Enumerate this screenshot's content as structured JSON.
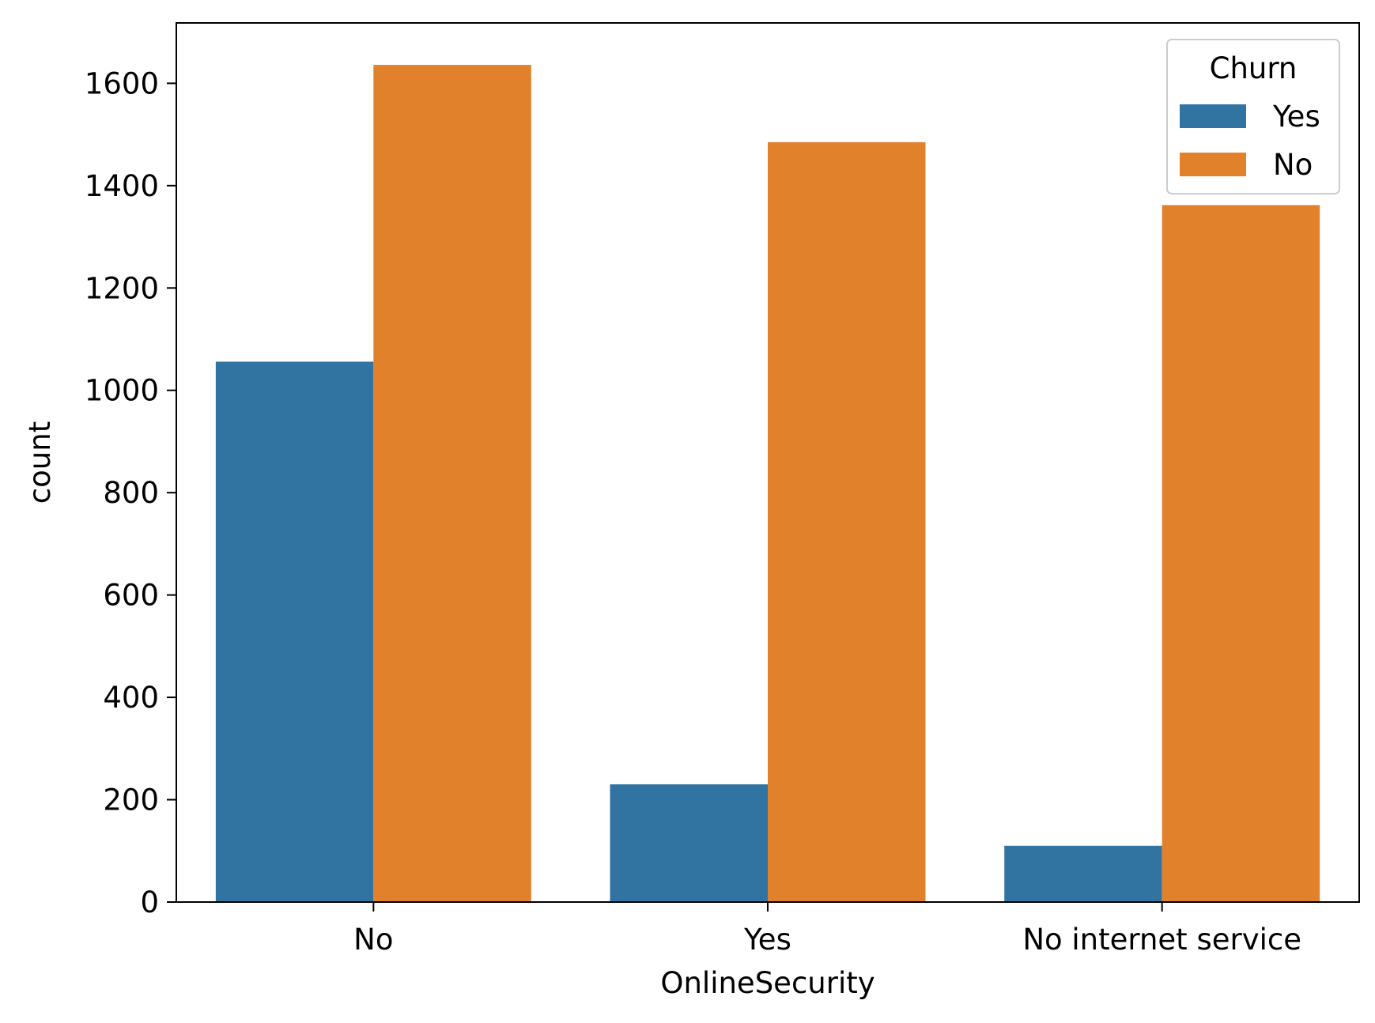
{
  "chart_data": {
    "type": "bar",
    "title": "",
    "xlabel": "OnlineSecurity",
    "ylabel": "count",
    "categories": [
      "No",
      "Yes",
      "No internet service"
    ],
    "series": [
      {
        "name": "Yes",
        "color": "#3274a1",
        "values": [
          1056,
          230,
          110
        ]
      },
      {
        "name": "No",
        "color": "#e1812c",
        "values": [
          1636,
          1485,
          1362
        ]
      }
    ],
    "ylim": [
      0,
      1718
    ],
    "yticks": [
      0,
      200,
      400,
      600,
      800,
      1000,
      1200,
      1400,
      1600
    ],
    "grid": false,
    "legend": {
      "title": "Churn",
      "placement": "top-right"
    }
  }
}
